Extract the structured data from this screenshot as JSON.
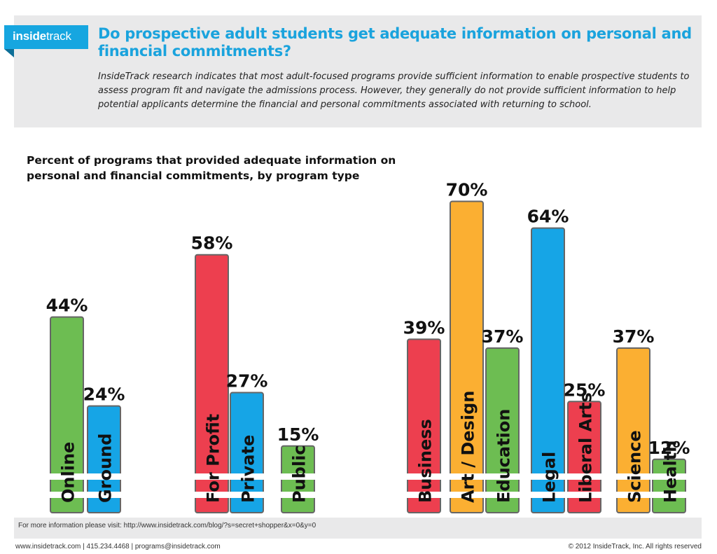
{
  "brand": {
    "logo_inside": "inside",
    "logo_track": "track",
    "accent_color": "#1aa3dd"
  },
  "header": {
    "title": "Do prospective adult students get adequate information on personal and financial commitments?",
    "intro": "InsideTrack research indicates that most adult-focused programs provide sufficient information to enable prospective students to assess program fit and navigate the admissions process.  However, they generally do not provide sufficient information to help potential applicants determine the financial and personal commitments associated with returning to school."
  },
  "chart_data": {
    "type": "bar",
    "title": "Percent of programs that provided adequate information on personal and financial commitments, by program type",
    "unit": "%",
    "ylim": [
      0,
      100
    ],
    "grid": false,
    "legend": "none",
    "groups": [
      {
        "bars": [
          {
            "category": "Online",
            "value": 44,
            "label": "44%",
            "color": "#6dbd52"
          },
          {
            "category": "Ground",
            "value": 24,
            "label": "24%",
            "color": "#16a5e6"
          }
        ]
      },
      {
        "bars": [
          {
            "category": "For Profit",
            "value": 58,
            "label": "58%",
            "color": "#ed3f4f"
          },
          {
            "category": "Private",
            "value": 27,
            "label": "27%",
            "color": "#16a5e6"
          },
          {
            "category": "Public",
            "value": 15,
            "label": "15%",
            "color": "#6dbd52"
          }
        ]
      },
      {
        "bars": [
          {
            "category": "Business",
            "value": 39,
            "label": "39%",
            "color": "#ed3f4f"
          },
          {
            "category": "Art / Design",
            "value": 70,
            "label": "70%",
            "color": "#fbaf32"
          },
          {
            "category": "Education",
            "value": 37,
            "label": "37%",
            "color": "#6dbd52"
          },
          {
            "category": "Legal",
            "value": 64,
            "label": "64%",
            "color": "#16a5e6"
          },
          {
            "category": "Liberal Arts",
            "value": 25,
            "label": "25%",
            "color": "#ed3f4f"
          },
          {
            "category": "Science",
            "value": 37,
            "label": "37%",
            "color": "#fbaf32"
          },
          {
            "category": "Health",
            "value": 12,
            "label": "12%",
            "color": "#6dbd52"
          }
        ]
      }
    ]
  },
  "footer": {
    "more_info": "For more information please visit: http://www.insidetrack.com/blog/?s=secret+shopper&x=0&y=0",
    "contact": "www.insidetrack.com | 415.234.4468 | programs@insidetrack.com",
    "copyright": "© 2012 InsideTrack, Inc. All rights reserved"
  }
}
